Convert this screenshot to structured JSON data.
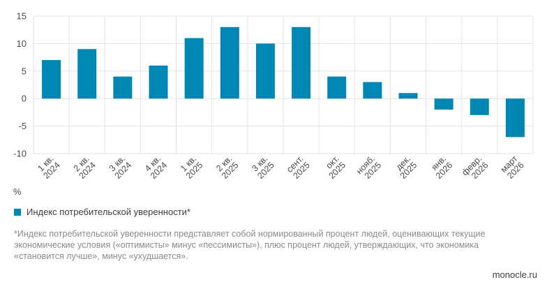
{
  "chart_data": {
    "type": "bar",
    "categories": [
      [
        "1 кв.",
        "2024"
      ],
      [
        "2 кв.",
        "2024"
      ],
      [
        "3 кв.",
        "2024"
      ],
      [
        "4 кв.",
        "2024"
      ],
      [
        "1 кв.",
        "2025"
      ],
      [
        "2 кв.",
        "2025"
      ],
      [
        "3 кв.",
        "2025"
      ],
      [
        "сент.",
        "2025"
      ],
      [
        "окт.",
        "2025"
      ],
      [
        "нояб.",
        "2025"
      ],
      [
        "дек.",
        "2025"
      ],
      [
        "янв.",
        "2026"
      ],
      [
        "февр.",
        "2026"
      ],
      [
        "март",
        "2026"
      ]
    ],
    "series": [
      {
        "name": "Индекс потребительской уверенности*",
        "values": [
          7,
          9,
          4,
          6,
          11,
          13,
          10,
          13,
          4,
          3,
          1,
          -2,
          -3,
          -7
        ]
      }
    ],
    "ylim": [
      -10,
      15
    ],
    "yticks": [
      "15",
      "10",
      "5",
      "0",
      "-5",
      "-10"
    ],
    "ylabel": "%",
    "grid": true,
    "legend_position": "bottom-left",
    "color": "#0086b3"
  },
  "footnote": "*Индекс потребительской уверенности представляет собой нормированный процент людей, оценивающих текущие экономические условия («оптимисты» минус «пессимисты»), плюс процент людей, утверждающих, что экономика «становится лучше», минус «ухудшается».",
  "source": "monocle.ru"
}
